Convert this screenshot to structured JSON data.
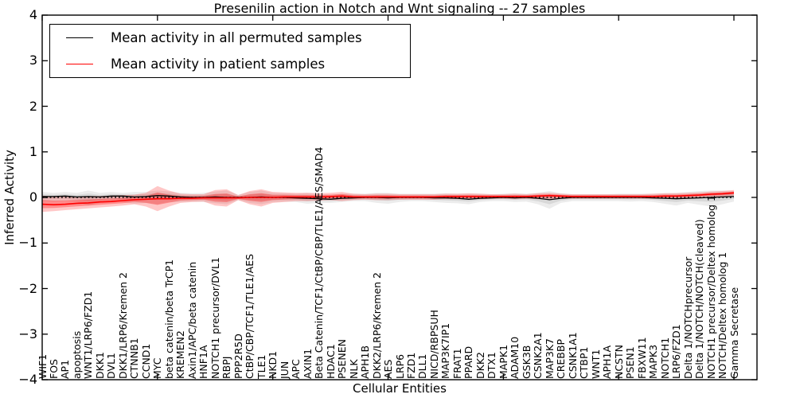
{
  "title": "Presenilin action in Notch and Wnt signaling -- 27 samples",
  "legend": {
    "items": [
      {
        "label": "Mean activity in all permuted samples",
        "color": "#000000"
      },
      {
        "label": "Mean activity in patient samples",
        "color": "#ff0000"
      }
    ]
  },
  "chart_data": {
    "type": "line",
    "title": "Presenilin action in Notch and Wnt signaling -- 27 samples",
    "xlabel": "Cellular Entities",
    "ylabel": "Inferred Activity",
    "ylim": [
      -4,
      4
    ],
    "xlim": [
      0,
      62
    ],
    "yticks": [
      -4,
      -3,
      -2,
      -1,
      0,
      1,
      2,
      3,
      4
    ],
    "xtick_major_every": 10,
    "grid": false,
    "legend_position": "upper left",
    "zero_line": {
      "style": "dotted",
      "color": "#000000",
      "y": 0
    },
    "categories": [
      "WIF1",
      "FOS",
      "AP1",
      "apoptosis",
      "WNT1/LRP6/FZD1",
      "DKK1",
      "DVL1",
      "DKK1/LRP6/Kremen 2",
      "CTNNB1",
      "CCND1",
      "MYC",
      "beta catenin/beta TrCP1",
      "KREMEN2",
      "Axin1/APC/beta catenin",
      "HNF1A",
      "NOTCH1 precursor/DVL1",
      "RBPJ",
      "PPP2R5D",
      "CtBP/CBP/TCF1/TLE1/AES",
      "TLE1",
      "NKD1",
      "JUN",
      "APC",
      "AXIN1",
      "Beta Catenin/TCF1/CtBP/CBP/TLE1/AES/SMAD4",
      "HDAC1",
      "PSENEN",
      "NLK",
      "APH1B",
      "DKK2/LRP6/Kremen 2",
      "AES",
      "LRP6",
      "FZD1",
      "DLL1",
      "NICD/RBPSUH",
      "MAP3K7IP1",
      "FRAT1",
      "PPARD",
      "DKK2",
      "DTX1",
      "MAPK1",
      "ADAM10",
      "GSK3B",
      "CSNK2A1",
      "MAP3K7",
      "CREBBP",
      "CSNK1A1",
      "CTBP1",
      "WNT1",
      "APH1A",
      "NCSTN",
      "PSEN1",
      "FBXW11",
      "MAPK3",
      "NOTCH1",
      "LRP6/FZD1",
      "Delta 1/NOTCHprecursor",
      "Delta 1/NOTCH/NOTCH(cleaved)",
      "NOTCH1 precursor/Deltex homolog 1",
      "NOTCH/Deltex homolog 1",
      "Gamma Secretase"
    ],
    "series": [
      {
        "name": "Mean activity in all permuted samples",
        "color": "#000000",
        "line_width": 1.3,
        "band_color": "#aaaaaa",
        "values": [
          0.02,
          0.02,
          0.03,
          0.01,
          0.02,
          0.01,
          0.03,
          0.03,
          0.01,
          0.02,
          0.04,
          0.03,
          0.01,
          0.0,
          0.0,
          0.01,
          0.0,
          0.0,
          0.0,
          0.01,
          0.0,
          0.0,
          -0.01,
          -0.02,
          -0.03,
          -0.04,
          -0.02,
          -0.01,
          0.0,
          0.0,
          -0.01,
          0.0,
          0.0,
          0.0,
          -0.01,
          -0.01,
          -0.02,
          -0.04,
          -0.02,
          -0.01,
          0.0,
          -0.01,
          0.0,
          -0.02,
          -0.05,
          -0.02,
          0.0,
          0.0,
          0.0,
          0.0,
          0.0,
          0.0,
          0.0,
          -0.01,
          -0.02,
          -0.03,
          -0.02,
          -0.01,
          0.0,
          0.01,
          0.02
        ],
        "band_lo": [
          -0.08,
          -0.09,
          -0.08,
          -0.1,
          -0.18,
          -0.12,
          -0.08,
          -0.1,
          -0.14,
          -0.12,
          -0.15,
          -0.1,
          -0.1,
          -0.09,
          -0.1,
          -0.13,
          -0.15,
          -0.06,
          -0.12,
          -0.15,
          -0.1,
          -0.09,
          -0.1,
          -0.14,
          -0.12,
          -0.12,
          -0.1,
          -0.08,
          -0.08,
          -0.12,
          -0.14,
          -0.1,
          -0.08,
          -0.08,
          -0.1,
          -0.12,
          -0.13,
          -0.15,
          -0.1,
          -0.08,
          -0.08,
          -0.1,
          -0.09,
          -0.15,
          -0.25,
          -0.12,
          -0.08,
          -0.08,
          -0.08,
          -0.08,
          -0.08,
          -0.09,
          -0.08,
          -0.1,
          -0.14,
          -0.18,
          -0.12,
          -0.16,
          -0.2,
          -0.15,
          -0.09
        ],
        "band_hi": [
          0.12,
          0.1,
          0.12,
          0.1,
          0.15,
          0.1,
          0.12,
          0.1,
          0.12,
          0.12,
          0.15,
          0.13,
          0.1,
          0.09,
          0.1,
          0.13,
          0.15,
          0.06,
          0.12,
          0.15,
          0.1,
          0.09,
          0.08,
          0.1,
          0.08,
          0.06,
          0.08,
          0.08,
          0.08,
          0.1,
          0.1,
          0.08,
          0.08,
          0.08,
          0.08,
          0.09,
          0.08,
          0.08,
          0.08,
          0.07,
          0.08,
          0.09,
          0.08,
          0.1,
          0.14,
          0.09,
          0.07,
          0.07,
          0.07,
          0.07,
          0.08,
          0.08,
          0.08,
          0.08,
          0.09,
          0.1,
          0.12,
          0.14,
          0.15,
          0.15,
          0.14
        ]
      },
      {
        "name": "Mean activity in patient samples",
        "color": "#ff0000",
        "line_width": 1.6,
        "band_color": "#ff0000",
        "values": [
          -0.15,
          -0.16,
          -0.15,
          -0.13,
          -0.12,
          -0.1,
          -0.09,
          -0.07,
          -0.05,
          -0.04,
          -0.03,
          -0.03,
          -0.02,
          -0.02,
          -0.01,
          -0.01,
          -0.01,
          -0.01,
          0.0,
          0.0,
          0.0,
          0.01,
          0.01,
          0.01,
          0.01,
          0.02,
          0.03,
          0.01,
          0.01,
          0.01,
          0.01,
          0.01,
          0.01,
          0.01,
          0.01,
          0.02,
          0.02,
          0.02,
          0.02,
          0.02,
          0.02,
          0.02,
          0.02,
          0.03,
          0.04,
          0.03,
          0.02,
          0.02,
          0.02,
          0.02,
          0.02,
          0.02,
          0.02,
          0.02,
          0.03,
          0.03,
          0.04,
          0.05,
          0.07,
          0.08,
          0.1
        ],
        "band_lo": [
          -0.32,
          -0.3,
          -0.28,
          -0.26,
          -0.24,
          -0.22,
          -0.2,
          -0.18,
          -0.15,
          -0.2,
          -0.3,
          -0.2,
          -0.12,
          -0.1,
          -0.09,
          -0.18,
          -0.2,
          -0.06,
          -0.15,
          -0.2,
          -0.12,
          -0.1,
          -0.08,
          -0.08,
          -0.07,
          -0.06,
          -0.08,
          -0.06,
          -0.05,
          -0.06,
          -0.06,
          -0.05,
          -0.05,
          -0.05,
          -0.05,
          -0.04,
          -0.04,
          -0.04,
          -0.04,
          -0.03,
          -0.03,
          -0.04,
          -0.03,
          -0.04,
          -0.04,
          -0.03,
          -0.03,
          -0.03,
          -0.03,
          -0.03,
          -0.03,
          -0.03,
          -0.03,
          -0.03,
          -0.03,
          -0.02,
          -0.01,
          0.0,
          0.01,
          0.02,
          0.04
        ],
        "band_hi": [
          0.04,
          0.02,
          0.02,
          0.02,
          0.03,
          0.03,
          0.04,
          0.05,
          0.06,
          0.1,
          0.25,
          0.15,
          0.08,
          0.07,
          0.07,
          0.16,
          0.18,
          0.05,
          0.14,
          0.18,
          0.12,
          0.11,
          0.1,
          0.1,
          0.09,
          0.1,
          0.12,
          0.08,
          0.07,
          0.08,
          0.08,
          0.07,
          0.07,
          0.07,
          0.07,
          0.08,
          0.08,
          0.09,
          0.08,
          0.07,
          0.07,
          0.08,
          0.07,
          0.09,
          0.1,
          0.08,
          0.07,
          0.07,
          0.07,
          0.07,
          0.07,
          0.07,
          0.07,
          0.08,
          0.09,
          0.09,
          0.1,
          0.11,
          0.13,
          0.14,
          0.16
        ]
      }
    ]
  }
}
